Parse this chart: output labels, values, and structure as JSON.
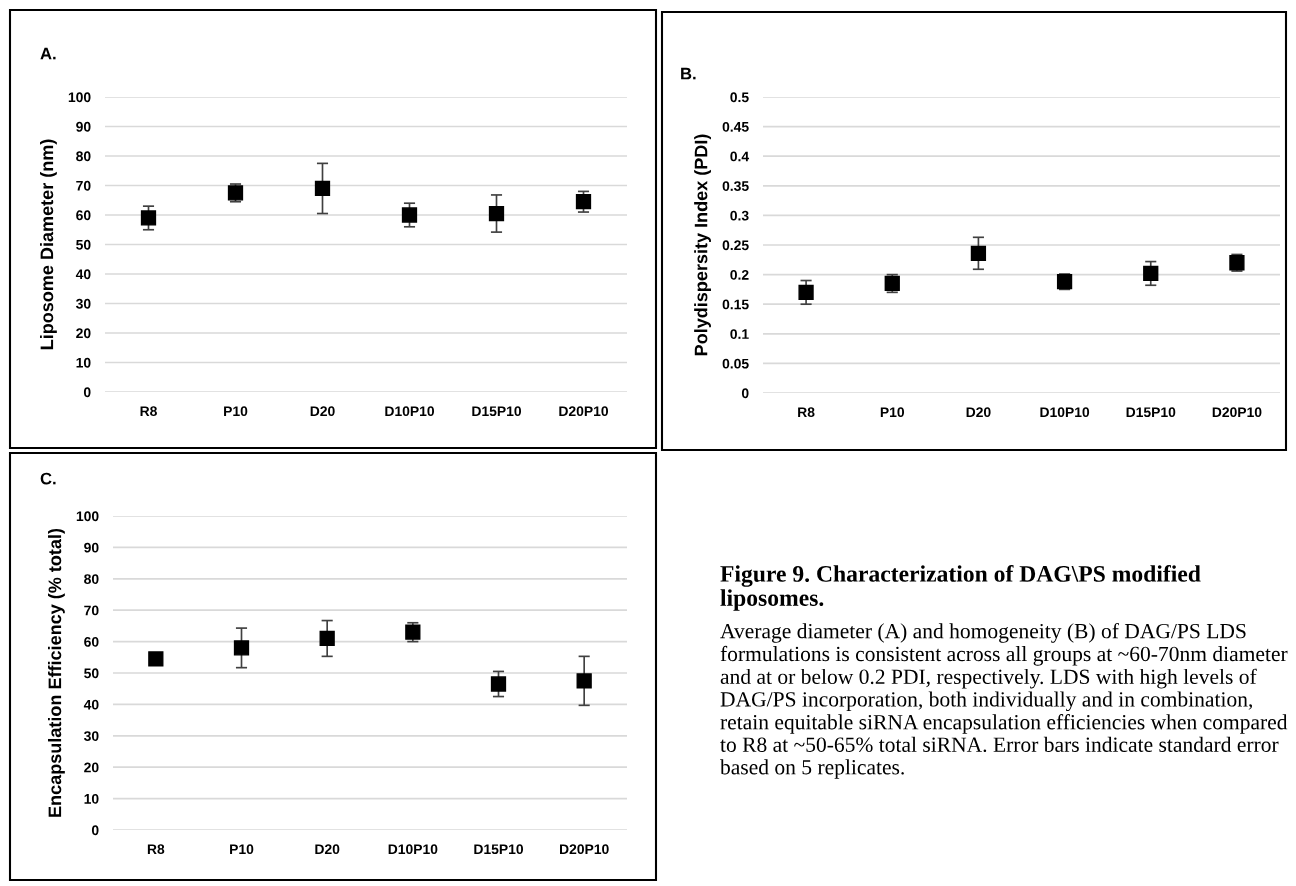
{
  "chart_data": [
    {
      "type": "scatter",
      "title": "A.",
      "ylabel": "Liposome Diameter (nm)",
      "categories": [
        "R8",
        "P10",
        "D20",
        "D10P10",
        "D15P10",
        "D20P10"
      ],
      "values": [
        59,
        67.5,
        69,
        60,
        60.5,
        64.5
      ],
      "errors": [
        4,
        3,
        8.5,
        4,
        6.3,
        3.5
      ],
      "color": "#000000",
      "marker": "square",
      "ylim": [
        0,
        100
      ],
      "yticks": [
        0,
        10,
        20,
        30,
        40,
        50,
        60,
        70,
        80,
        90,
        100
      ],
      "grid": "y"
    },
    {
      "type": "scatter",
      "title": "B.",
      "ylabel": "Polydispersity Index (PDI)",
      "categories": [
        "R8",
        "P10",
        "D20",
        "D10P10",
        "D15P10",
        "D20P10"
      ],
      "values": [
        0.17,
        0.185,
        0.236,
        0.188,
        0.202,
        0.22
      ],
      "errors": [
        0.02,
        0.015,
        0.027,
        0.013,
        0.02,
        0.014
      ],
      "color": "#000000",
      "marker": "square",
      "ylim": [
        0,
        0.5
      ],
      "yticks": [
        0,
        0.05,
        0.1,
        0.15,
        0.2,
        0.25,
        0.3,
        0.35,
        0.4,
        0.45,
        0.5
      ],
      "grid": "y"
    },
    {
      "type": "scatter",
      "title": "C.",
      "ylabel": "Encapsulation Efficiency (% total)",
      "categories": [
        "R8",
        "P10",
        "D20",
        "D10P10",
        "D15P10",
        "D20P10"
      ],
      "values": [
        54.5,
        58,
        61,
        63,
        46.5,
        47.5
      ],
      "errors": [
        1.5,
        6.3,
        5.7,
        3,
        4,
        7.8
      ],
      "color": "#000000",
      "marker": "square",
      "ylim": [
        0,
        100
      ],
      "yticks": [
        0,
        10,
        20,
        30,
        40,
        50,
        60,
        70,
        80,
        90,
        100
      ],
      "grid": "y"
    },
    {
      "type": "other",
      "title": "Figure 9. Characterization of DAG\\PS modified liposomes.",
      "annotations": [
        "Average diameter (A) and homogeneity (B) of DAG/PS LDS formulations is consistent across all groups at ~60-70nm diameter and at or below 0.2 PDI, respectively. LDS with high levels of DAG/PS incorporation, both individually and in combination, retain equitable siRNA encapsulation efficiencies when compared to R8 at ~50-65% total siRNA. Error bars indicate standard error based on 5 replicates."
      ]
    }
  ]
}
